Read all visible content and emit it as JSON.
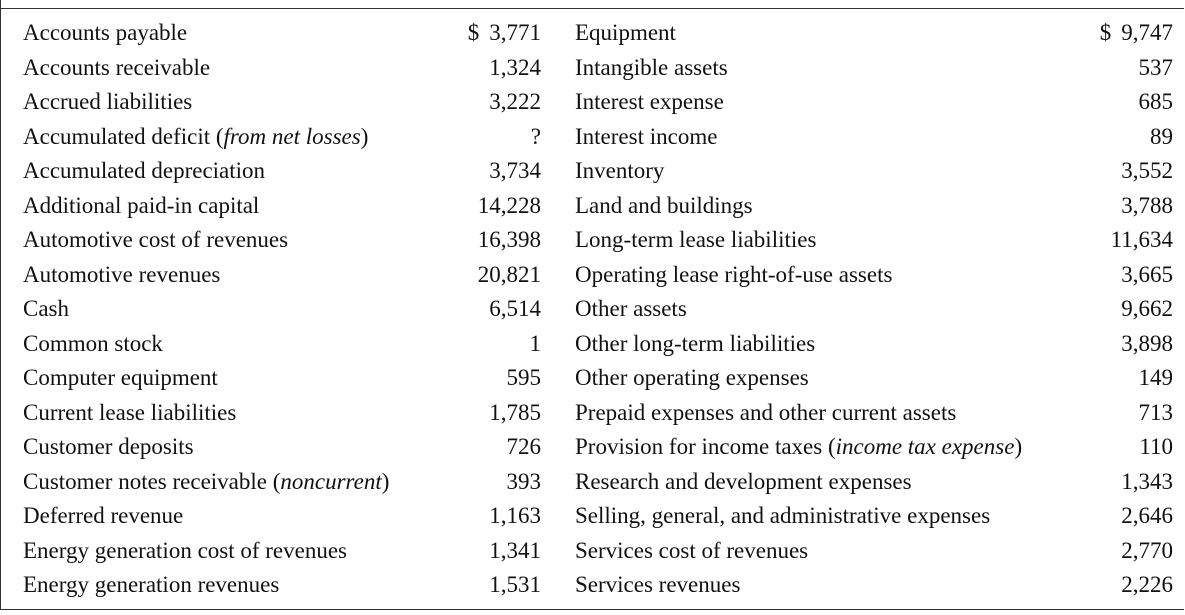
{
  "accounts": {
    "left": [
      {
        "name": "Accounts payable",
        "note": "",
        "value": "3,771",
        "currency": "$"
      },
      {
        "name": "Accounts receivable",
        "note": "",
        "value": "1,324"
      },
      {
        "name": "Accrued liabilities",
        "note": "",
        "value": "3,222"
      },
      {
        "name": "Accumulated deficit (",
        "note": "from net losses",
        "suffix": ")",
        "value": "?"
      },
      {
        "name": "Accumulated depreciation",
        "note": "",
        "value": "3,734"
      },
      {
        "name": "Additional paid-in capital",
        "note": "",
        "value": "14,228"
      },
      {
        "name": "Automotive cost of revenues",
        "note": "",
        "value": "16,398"
      },
      {
        "name": "Automotive revenues",
        "note": "",
        "value": "20,821"
      },
      {
        "name": "Cash",
        "note": "",
        "value": "6,514"
      },
      {
        "name": "Common stock",
        "note": "",
        "value": "1"
      },
      {
        "name": "Computer equipment",
        "note": "",
        "value": "595"
      },
      {
        "name": "Current lease liabilities",
        "note": "",
        "value": "1,785"
      },
      {
        "name": "Customer deposits",
        "note": "",
        "value": "726"
      },
      {
        "name": "Customer notes receivable (",
        "note": "noncurrent",
        "suffix": ")",
        "value": "393"
      },
      {
        "name": "Deferred revenue",
        "note": "",
        "value": "1,163"
      },
      {
        "name": "Energy generation cost of revenues",
        "note": "",
        "value": "1,341"
      },
      {
        "name": "Energy generation revenues",
        "note": "",
        "value": "1,531"
      }
    ],
    "right": [
      {
        "name": "Equipment",
        "note": "",
        "value": "9,747",
        "currency": "$"
      },
      {
        "name": "Intangible assets",
        "note": "",
        "value": "537"
      },
      {
        "name": "Interest expense",
        "note": "",
        "value": "685"
      },
      {
        "name": "Interest income",
        "note": "",
        "value": "89"
      },
      {
        "name": "Inventory",
        "note": "",
        "value": "3,552"
      },
      {
        "name": "Land and buildings",
        "note": "",
        "value": "3,788"
      },
      {
        "name": "Long-term lease liabilities",
        "note": "",
        "value": "11,634"
      },
      {
        "name": "Operating lease right-of-use assets",
        "note": "",
        "value": "3,665"
      },
      {
        "name": "Other assets",
        "note": "",
        "value": "9,662"
      },
      {
        "name": "Other long-term liabilities",
        "note": "",
        "value": "3,898"
      },
      {
        "name": "Other operating expenses",
        "note": "",
        "value": "149"
      },
      {
        "name": "Prepaid expenses and other current assets",
        "note": "",
        "value": "713"
      },
      {
        "name": "Provision for income taxes (",
        "note": "income tax expense",
        "suffix": ")",
        "value": "110"
      },
      {
        "name": "Research and development expenses",
        "note": "",
        "value": "1,343"
      },
      {
        "name": "Selling, general, and administrative expenses",
        "note": "",
        "value": "2,646"
      },
      {
        "name": "Services cost of revenues",
        "note": "",
        "value": "2,770"
      },
      {
        "name": "Services revenues",
        "note": "",
        "value": "2,226"
      }
    ]
  }
}
